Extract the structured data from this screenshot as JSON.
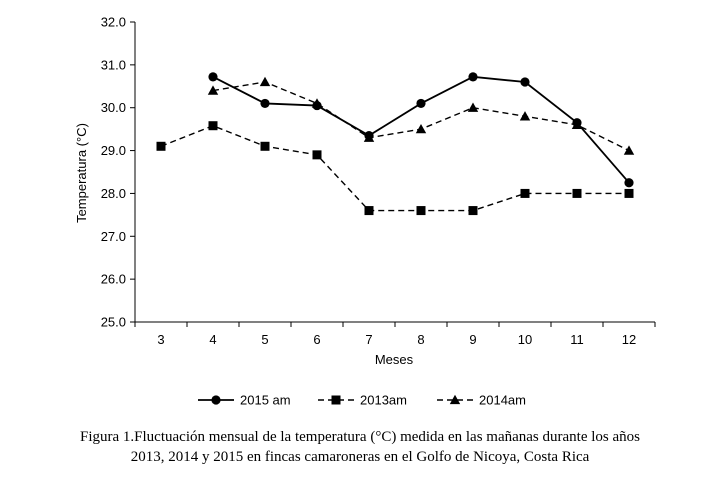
{
  "chart_data": {
    "type": "line",
    "categories": [
      "3",
      "4",
      "5",
      "6",
      "7",
      "8",
      "9",
      "10",
      "11",
      "12"
    ],
    "series": [
      {
        "name": "2015 am",
        "marker": "circle",
        "dash": "solid",
        "values": [
          null,
          30.72,
          30.1,
          30.05,
          29.35,
          30.1,
          30.72,
          30.6,
          29.65,
          28.25
        ]
      },
      {
        "name": "2013am",
        "marker": "square",
        "dash": "dashed",
        "values": [
          29.1,
          29.58,
          29.1,
          28.9,
          27.6,
          27.6,
          27.6,
          28.0,
          28.0,
          28.0
        ]
      },
      {
        "name": "2014am",
        "marker": "triangle",
        "dash": "dashed",
        "values": [
          null,
          30.4,
          30.6,
          30.1,
          29.3,
          29.5,
          30.0,
          29.8,
          29.6,
          29.0
        ]
      }
    ],
    "xlabel": "Meses",
    "ylabel": "Temperatura (°C)",
    "ylim": [
      25.0,
      32.0
    ],
    "yticks": [
      "25.0",
      "26.0",
      "27.0",
      "28.0",
      "29.0",
      "30.0",
      "31.0",
      "32.0"
    ],
    "grid": false,
    "legend_position": "bottom"
  },
  "caption": {
    "line1": "Figura 1.Fluctuación mensual de la temperatura (°C) medida en las mañanas durante los años",
    "line2": "2013, 2014 y 2015 en fincas camaroneras en el Golfo de Nicoya, Costa Rica"
  }
}
